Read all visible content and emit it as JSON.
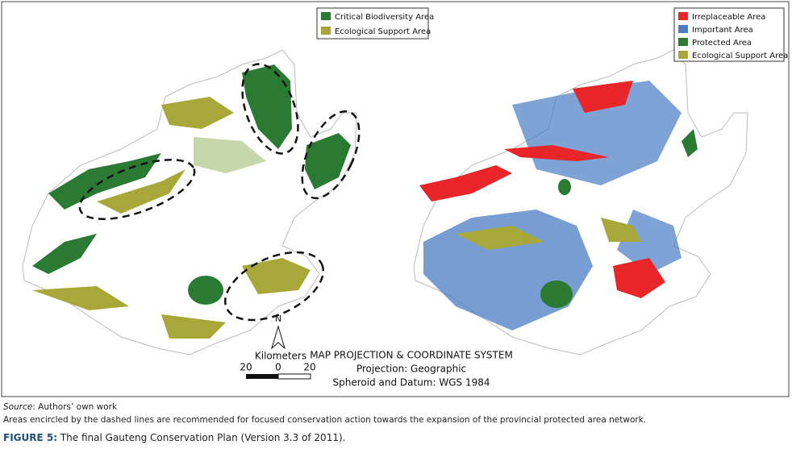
{
  "left_legend": {
    "items": [
      "Critical Biodiversity Area",
      "Ecological Support Area"
    ]
  },
  "right_legend": {
    "items": [
      "Irreplaceable Area",
      "Important Area",
      "Protected Area",
      "Ecological Support Area"
    ]
  },
  "north_label": "N",
  "scale_bar": {
    "unit": "Kilometers",
    "labels": [
      20,
      0,
      20
    ]
  },
  "projection": {
    "title": "MAP PROJECTION & COORDINATE SYSTEM",
    "lines": [
      "Projection: Geographic",
      "Spheroid and Datum: WGS 1984"
    ]
  },
  "caption": {
    "source_label": "Source",
    "source_text": ": Authors’ own work",
    "note": "Areas encircled by the dashed lines are recommended for focused conservation action towards the expansion of the provincial protected area network.",
    "figure_label": "FIGURE 5:",
    "figure_title": " The final Gauteng Conservation Plan (Version 3.3 of 2011)."
  }
}
